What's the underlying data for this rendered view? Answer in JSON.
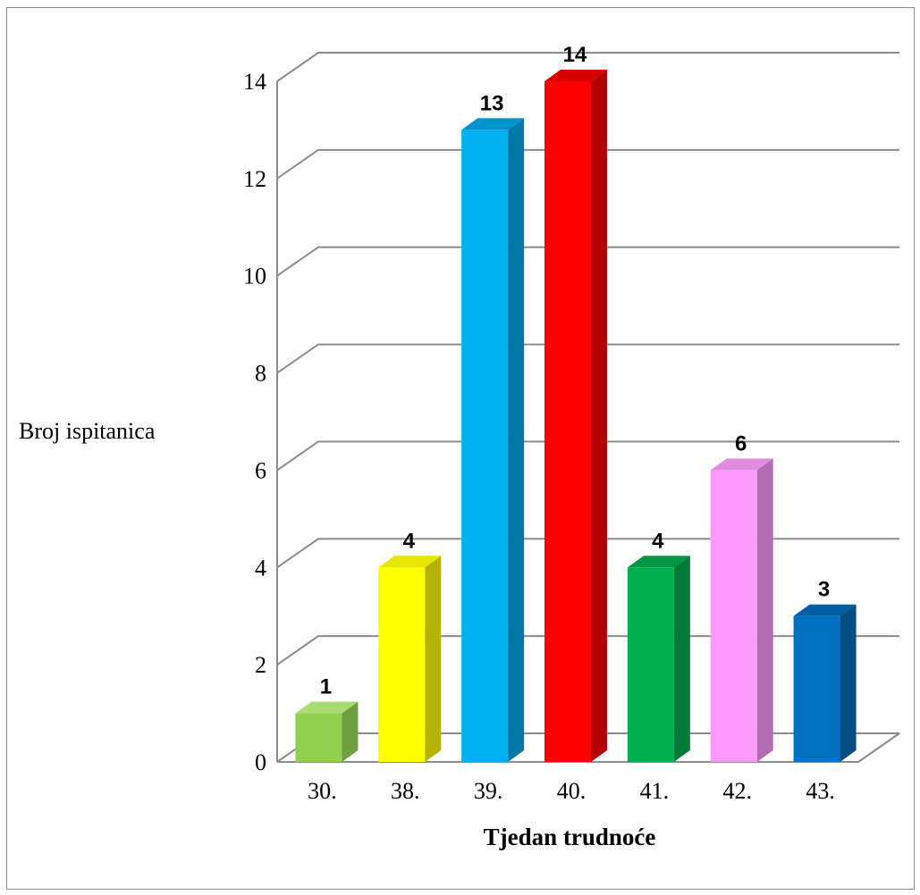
{
  "chart_data": {
    "type": "bar",
    "title": "",
    "xlabel": "Tjedan trudnoće",
    "ylabel": "Broj ispitanica",
    "categories": [
      "30.",
      "38.",
      "39.",
      "40.",
      "41.",
      "42.",
      "43."
    ],
    "values": [
      1,
      4,
      13,
      14,
      4,
      6,
      3
    ],
    "ylim": [
      0,
      14
    ],
    "yticks": [
      "0",
      "2",
      "4",
      "6",
      "8",
      "10",
      "12",
      "14"
    ],
    "data_labels": [
      "1",
      "4",
      "13",
      "14",
      "4",
      "6",
      "3"
    ],
    "grid": true,
    "legend": "none",
    "bar_colors": [
      {
        "front": "#92d050",
        "side": "#6f9e3c",
        "top": "#a8dc70"
      },
      {
        "front": "#ffff00",
        "side": "#b3b300",
        "top": "#e6e600"
      },
      {
        "front": "#00b0f0",
        "side": "#0079a6",
        "top": "#0094cc"
      },
      {
        "front": "#ff0000",
        "side": "#b30000",
        "top": "#d90000"
      },
      {
        "front": "#00b050",
        "side": "#007a38",
        "top": "#009644"
      },
      {
        "front": "#ff99ff",
        "side": "#b36bb3",
        "top": "#e08ae0"
      },
      {
        "front": "#0070c0",
        "side": "#004d85",
        "top": "#005ea3"
      }
    ],
    "grid_color": "#8c8c8c"
  }
}
